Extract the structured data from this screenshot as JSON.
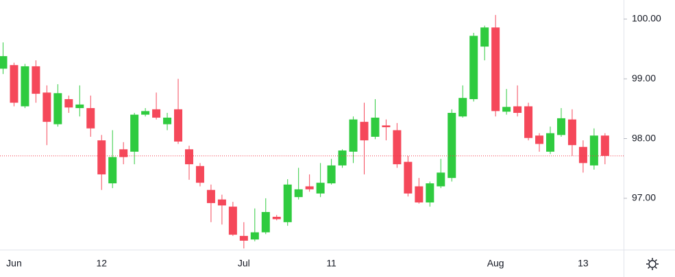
{
  "chart_data": {
    "type": "candlestick",
    "categories": [
      null,
      "Jun",
      null,
      null,
      null,
      null,
      null,
      null,
      null,
      "12",
      null,
      null,
      null,
      null,
      null,
      null,
      null,
      null,
      null,
      null,
      null,
      null,
      "Jul",
      null,
      null,
      null,
      null,
      null,
      null,
      null,
      "11",
      null,
      null,
      null,
      null,
      null,
      null,
      null,
      null,
      null,
      null,
      null,
      null,
      null,
      null,
      "Aug",
      null,
      null,
      null,
      null,
      null,
      null,
      null,
      "13",
      null,
      null
    ],
    "open": [
      99.17,
      99.23,
      98.54,
      99.21,
      98.77,
      98.24,
      98.66,
      98.51,
      98.51,
      97.97,
      97.25,
      97.82,
      97.78,
      98.4,
      98.49,
      98.24,
      98.49,
      97.82,
      97.54,
      97.14,
      96.98,
      96.86,
      96.37,
      96.31,
      96.43,
      96.69,
      96.6,
      97.02,
      97.2,
      97.08,
      97.25,
      97.55,
      97.78,
      98.28,
      98.03,
      98.22,
      98.14,
      97.61,
      97.2,
      96.93,
      97.2,
      97.34,
      98.37,
      98.66,
      99.54,
      99.86,
      98.45,
      98.54,
      98.54,
      98.05,
      97.78,
      98.06,
      98.32,
      97.86,
      97.55,
      98.05
    ],
    "high": [
      99.61,
      99.27,
      99.25,
      99.31,
      98.89,
      98.91,
      98.72,
      98.89,
      98.72,
      98.06,
      98.14,
      97.94,
      98.43,
      98.51,
      98.77,
      98.43,
      99.0,
      97.88,
      97.59,
      97.23,
      97.06,
      96.94,
      96.6,
      96.83,
      97.0,
      96.72,
      97.32,
      97.51,
      97.4,
      97.59,
      97.66,
      97.82,
      98.37,
      98.6,
      98.66,
      98.32,
      98.26,
      97.71,
      97.34,
      97.28,
      97.66,
      98.49,
      98.89,
      99.77,
      99.89,
      100.07,
      98.83,
      98.89,
      98.6,
      98.09,
      98.2,
      98.51,
      98.49,
      97.97,
      98.17,
      98.09
    ],
    "low": [
      99.08,
      98.54,
      98.51,
      98.6,
      97.89,
      98.2,
      98.43,
      98.37,
      98.03,
      97.14,
      97.17,
      97.57,
      97.57,
      98.37,
      98.32,
      98.14,
      97.91,
      97.31,
      97.2,
      96.6,
      96.56,
      96.37,
      96.16,
      96.28,
      96.4,
      96.63,
      96.54,
      96.98,
      97.11,
      97.02,
      97.23,
      97.51,
      97.59,
      97.4,
      97.99,
      97.97,
      97.51,
      97.03,
      96.91,
      96.86,
      97.17,
      97.28,
      98.35,
      98.62,
      99.31,
      98.37,
      98.4,
      98.37,
      97.97,
      97.78,
      97.74,
      98.03,
      97.71,
      97.43,
      97.48,
      97.57
    ],
    "close": [
      99.38,
      98.6,
      99.21,
      98.75,
      98.28,
      98.76,
      98.52,
      98.57,
      98.17,
      97.4,
      97.69,
      97.69,
      98.4,
      98.46,
      98.35,
      98.35,
      97.95,
      97.57,
      97.26,
      96.92,
      96.88,
      96.39,
      96.29,
      96.43,
      96.77,
      96.65,
      97.23,
      97.15,
      97.15,
      97.26,
      97.55,
      97.8,
      98.32,
      97.97,
      98.35,
      98.19,
      97.57,
      97.08,
      96.93,
      97.25,
      97.43,
      98.43,
      98.68,
      99.72,
      99.86,
      98.46,
      98.53,
      98.43,
      98.01,
      97.91,
      98.09,
      98.34,
      97.89,
      97.59,
      98.05,
      97.71
    ],
    "up_color": "#2fcb3f",
    "down_color": "#f5485a",
    "price_line_color": "#f23645",
    "ylim": [
      96.14,
      100.32
    ],
    "yticks": [
      {
        "value": 97,
        "label": "97.00"
      },
      {
        "value": 98,
        "label": "98.00"
      },
      {
        "value": 99,
        "label": "99.00"
      },
      {
        "value": 100,
        "label": "100.00"
      }
    ]
  }
}
